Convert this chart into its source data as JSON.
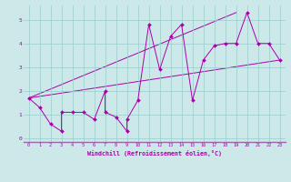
{
  "xlabel": "Windchill (Refroidissement éolien,°C)",
  "ylabel": "",
  "bg_color": "#cce8e8",
  "line_color": "#aa00aa",
  "xlim": [
    -0.5,
    23.5
  ],
  "ylim": [
    -0.15,
    5.6
  ],
  "xticks": [
    0,
    1,
    2,
    3,
    4,
    5,
    6,
    7,
    8,
    9,
    10,
    11,
    12,
    13,
    14,
    15,
    16,
    17,
    18,
    19,
    20,
    21,
    22,
    23
  ],
  "yticks": [
    0,
    1,
    2,
    3,
    4,
    5
  ],
  "scatter_x": [
    0,
    1,
    2,
    3,
    3,
    4,
    5,
    6,
    7,
    7,
    8,
    9,
    9,
    10,
    11,
    12,
    13,
    14,
    15,
    16,
    17,
    18,
    19,
    20,
    21,
    22,
    23
  ],
  "scatter_y": [
    1.7,
    1.3,
    0.6,
    0.3,
    1.1,
    1.1,
    1.1,
    0.8,
    2.0,
    1.1,
    0.9,
    0.3,
    0.8,
    1.6,
    4.8,
    2.9,
    4.3,
    4.8,
    1.6,
    3.3,
    3.9,
    4.0,
    4.0,
    5.3,
    4.0,
    4.0,
    3.3
  ],
  "line1_x": [
    0,
    23
  ],
  "line1_y": [
    1.7,
    3.3
  ],
  "line2_x": [
    0,
    19
  ],
  "line2_y": [
    1.7,
    5.3
  ]
}
